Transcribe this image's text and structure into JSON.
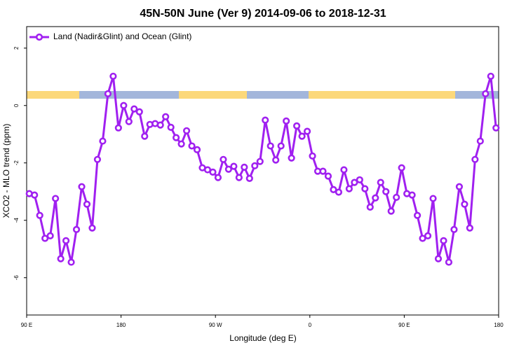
{
  "chart_data": {
    "type": "line",
    "title": "45N-50N June (Ver 9)   2014-09-06 to 2018-12-31",
    "xlabel": "Longitude (deg E)",
    "ylabel": "XCO2 - MLO trend (ppm)",
    "x": [
      92.5,
      97.5,
      102.5,
      107.5,
      112.5,
      117.5,
      122.5,
      127.5,
      132.5,
      137.5,
      142.5,
      147.5,
      152.5,
      157.5,
      162.5,
      167.5,
      172.5,
      177.5,
      182.5,
      187.5,
      192.5,
      197.5,
      202.5,
      207.5,
      212.5,
      217.5,
      222.5,
      227.5,
      232.5,
      237.5,
      242.5,
      247.5,
      252.5,
      257.5,
      262.5,
      267.5,
      272.5,
      277.5,
      282.5,
      287.5,
      292.5,
      297.5,
      302.5,
      307.5,
      312.5,
      317.5,
      322.5,
      327.5,
      332.5,
      337.5,
      342.5,
      347.5,
      352.5,
      357.5,
      362.5,
      367.5,
      372.5,
      377.5,
      382.5,
      387.5,
      392.5,
      397.5,
      402.5,
      407.5,
      412.5,
      417.5,
      422.5,
      427.5,
      432.5,
      437.5,
      442.5,
      447.5,
      452.5,
      457.5,
      462.5,
      467.5,
      472.5,
      477.5,
      482.5,
      487.5,
      492.5,
      497.5,
      502.5,
      507.5,
      512.5,
      517.5,
      522.5,
      527.5,
      532.5,
      537.5
    ],
    "series": [
      {
        "name": "Land (Nadir&Glint) and Ocean (Glint)",
        "color": "#a020f0",
        "values": [
          -3.07,
          -3.12,
          -3.83,
          -4.63,
          -4.54,
          -3.24,
          -5.34,
          -4.71,
          -5.46,
          -4.32,
          -2.83,
          -3.44,
          -4.27,
          -1.88,
          -1.24,
          0.41,
          1.02,
          -0.78,
          0.0,
          -0.56,
          -0.12,
          -0.22,
          -1.07,
          -0.66,
          -0.63,
          -0.68,
          -0.39,
          -0.76,
          -1.12,
          -1.34,
          -0.88,
          -1.41,
          -1.54,
          -2.17,
          -2.24,
          -2.32,
          -2.51,
          -1.88,
          -2.22,
          -2.12,
          -2.51,
          -2.15,
          -2.54,
          -2.1,
          -1.95,
          -0.51,
          -1.41,
          -1.9,
          -1.41,
          -0.54,
          -1.83,
          -0.71,
          -1.07,
          -0.9,
          -1.76,
          -2.29,
          -2.29,
          -2.46,
          -2.93,
          -3.02,
          -2.24,
          -2.9,
          -2.68,
          -2.59,
          -2.9,
          -3.54,
          -3.22,
          -2.68,
          -3.0,
          -3.68,
          -3.2,
          -2.17,
          -3.07,
          -3.12,
          -3.83,
          -4.63,
          -4.54,
          -3.24,
          -5.34,
          -4.71,
          -5.46,
          -4.32,
          -2.83,
          -3.44,
          -4.27,
          -1.88,
          -1.24,
          0.41,
          1.02,
          -0.78
        ]
      }
    ],
    "xlim": [
      90,
      540
    ],
    "xticks": [
      {
        "value": 90,
        "label": "90 E"
      },
      {
        "value": 180,
        "label": "180"
      },
      {
        "value": 270,
        "label": "90 W"
      },
      {
        "value": 360,
        "label": "0"
      },
      {
        "value": 450,
        "label": "90 E"
      },
      {
        "value": 540,
        "label": "180"
      }
    ],
    "ylim": [
      -7.3,
      2.75
    ],
    "yticks": [
      2,
      0,
      -2,
      -4,
      -6
    ],
    "legend": "top-left"
  }
}
